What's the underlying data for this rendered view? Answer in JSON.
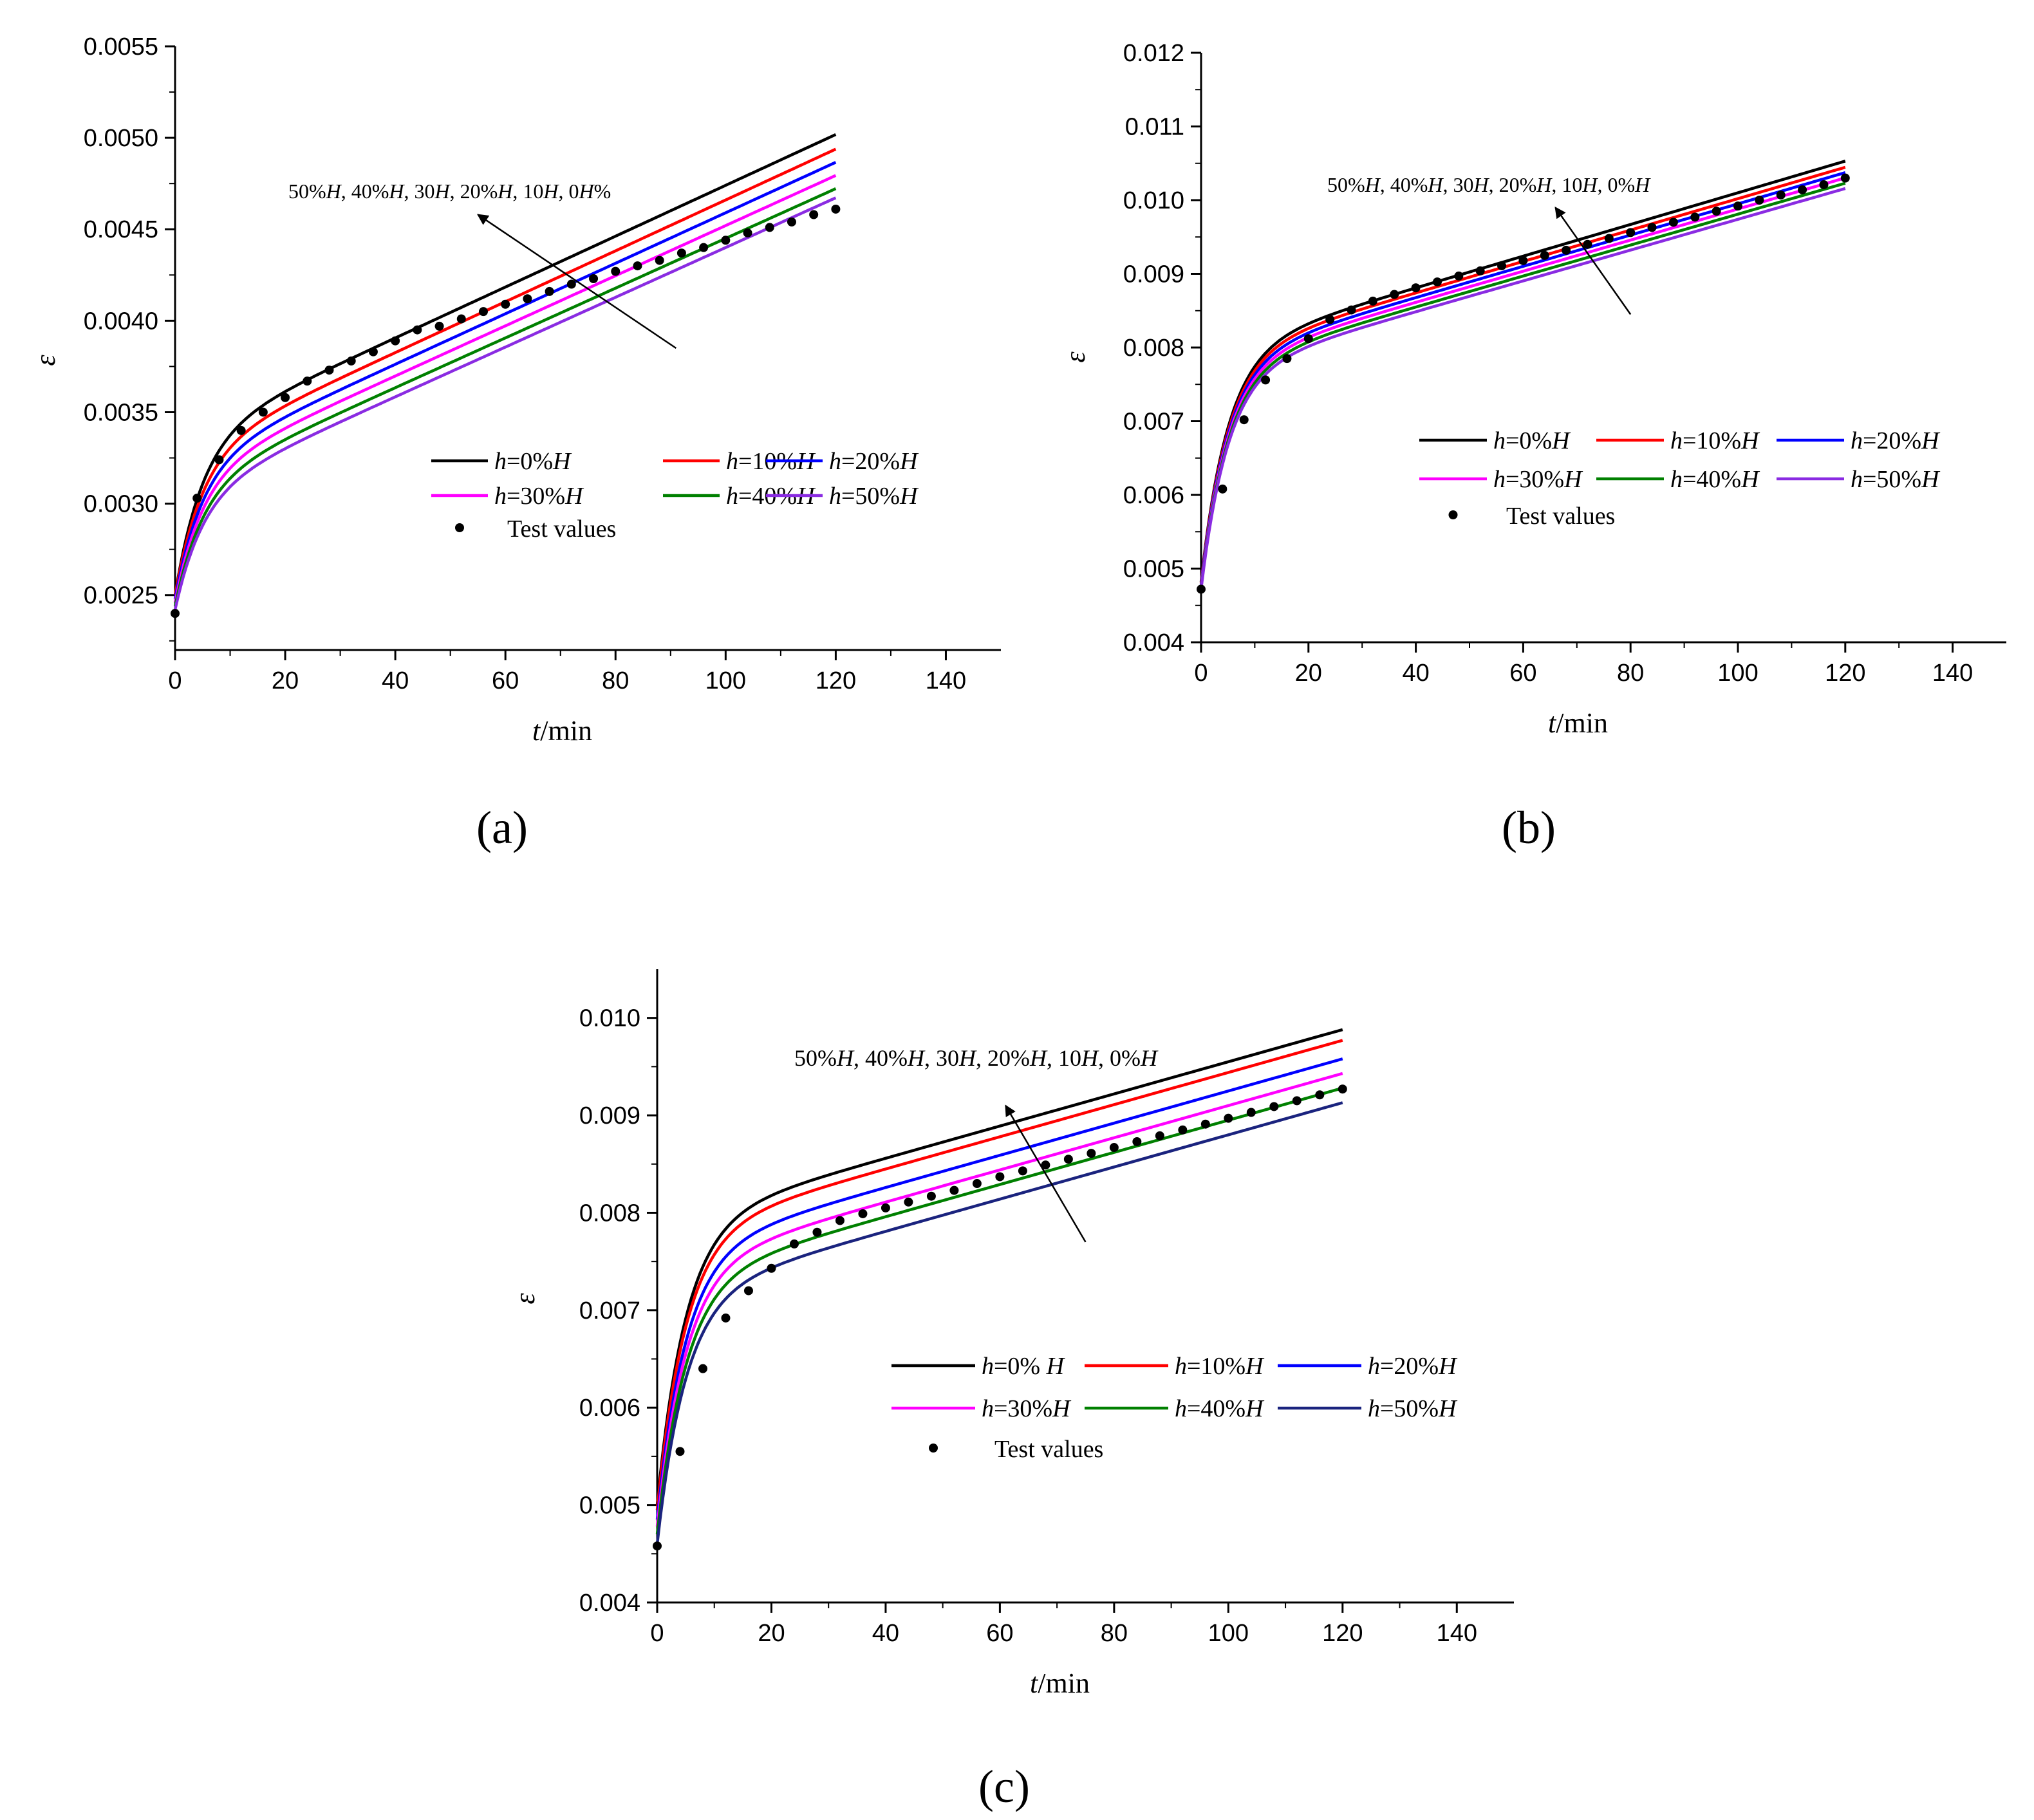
{
  "chart_data": [
    {
      "type": "line",
      "panel": "(a)",
      "xlabel": {
        "italic": "t",
        "unit": "/min"
      },
      "ylabel": "ε",
      "xlim": [
        0,
        150
      ],
      "ylim": [
        0.0022,
        0.0055
      ],
      "xticks": [
        0,
        20,
        40,
        60,
        80,
        100,
        120,
        140
      ],
      "yticks": [
        "0.0025",
        "0.0030",
        "0.0035",
        "0.0040",
        "0.0045",
        "0.0050",
        "0.0055"
      ],
      "annotation": [
        {
          "t": "50%",
          "i": false
        },
        {
          "t": "H",
          "i": true
        },
        {
          "t": ", 40%",
          "i": false
        },
        {
          "t": "H",
          "i": true
        },
        {
          "t": ", 30",
          "i": false
        },
        {
          "t": "H",
          "i": true
        },
        {
          "t": ", 20%",
          "i": false
        },
        {
          "t": "H",
          "i": true
        },
        {
          "t": ", 10",
          "i": false
        },
        {
          "t": "H",
          "i": true
        },
        {
          "t": ", 0",
          "i": false
        },
        {
          "t": "H",
          "i": true
        },
        {
          "t": "%",
          "i": false
        }
      ],
      "arrow": {
        "from": [
          91,
          0.00385
        ],
        "to": [
          55,
          0.00458
        ]
      },
      "legend": {
        "position": "lower-middle-right",
        "columns": 3
      },
      "series": [
        {
          "name": "h=0%H",
          "parts": [
            {
              "t": "h",
              "i": true
            },
            {
              "t": "=0%",
              "i": false
            },
            {
              "t": "H",
              "i": true
            }
          ],
          "color": "#000000",
          "start": 0.0025,
          "knee": 0.00335,
          "slope": 1.39e-05
        },
        {
          "name": "h=10%H",
          "parts": [
            {
              "t": "h",
              "i": true
            },
            {
              "t": "=10%",
              "i": false
            },
            {
              "t": "H",
              "i": true
            }
          ],
          "color": "#ff0000",
          "start": 0.0025,
          "knee": 0.00327,
          "slope": 1.39e-05
        },
        {
          "name": "h=20%H",
          "parts": [
            {
              "t": "h",
              "i": true
            },
            {
              "t": "=20%",
              "i": false
            },
            {
              "t": "H",
              "i": true
            }
          ],
          "color": "#0000ff",
          "start": 0.00248,
          "knee": 0.00321,
          "slope": 1.38e-05
        },
        {
          "name": "h=30%H",
          "parts": [
            {
              "t": "h",
              "i": true
            },
            {
              "t": "=30%",
              "i": false
            },
            {
              "t": "H",
              "i": true
            }
          ],
          "color": "#ff00ff",
          "start": 0.00246,
          "knee": 0.00315,
          "slope": 1.37e-05
        },
        {
          "name": "h=40%H",
          "parts": [
            {
              "t": "h",
              "i": true
            },
            {
              "t": "=40%",
              "i": false
            },
            {
              "t": "H",
              "i": true
            }
          ],
          "color": "#008000",
          "start": 0.00244,
          "knee": 0.00309,
          "slope": 1.36e-05
        },
        {
          "name": "h=50%H",
          "parts": [
            {
              "t": "h",
              "i": true
            },
            {
              "t": "=50%",
              "i": false
            },
            {
              "t": "H",
              "i": true
            }
          ],
          "color": "#8a2be2",
          "start": 0.00242,
          "knee": 0.00304,
          "slope": 1.36e-05
        }
      ],
      "test_label": "Test values",
      "test_points": {
        "x": [
          0,
          4,
          8,
          12,
          16,
          20,
          24,
          28,
          32,
          36,
          40,
          44,
          48,
          52,
          56,
          60,
          64,
          68,
          72,
          76,
          80,
          84,
          88,
          92,
          96,
          100,
          104,
          108,
          112,
          116,
          120
        ],
        "y": [
          0.0024,
          0.00303,
          0.00324,
          0.0034,
          0.0035,
          0.00358,
          0.00367,
          0.00373,
          0.00378,
          0.00383,
          0.00389,
          0.00395,
          0.00397,
          0.00401,
          0.00405,
          0.00409,
          0.00412,
          0.00416,
          0.0042,
          0.00423,
          0.00427,
          0.0043,
          0.00433,
          0.00437,
          0.0044,
          0.00444,
          0.00448,
          0.00451,
          0.00454,
          0.00458,
          0.00461
        ]
      }
    },
    {
      "type": "line",
      "panel": "(b)",
      "xlabel": {
        "italic": "t",
        "unit": "/min"
      },
      "ylabel": "ε",
      "xlim": [
        0,
        150
      ],
      "ylim": [
        0.004,
        0.012
      ],
      "xticks": [
        0,
        20,
        40,
        60,
        80,
        100,
        120,
        140
      ],
      "yticks": [
        "0.004",
        "0.005",
        "0.006",
        "0.007",
        "0.008",
        "0.009",
        "0.010",
        "0.011",
        "0.012"
      ],
      "annotation": [
        {
          "t": "50%",
          "i": false
        },
        {
          "t": "H",
          "i": true
        },
        {
          "t": ", 40%",
          "i": false
        },
        {
          "t": "H",
          "i": true
        },
        {
          "t": ", 30",
          "i": false
        },
        {
          "t": "H",
          "i": true
        },
        {
          "t": ", 20%",
          "i": false
        },
        {
          "t": "H",
          "i": true
        },
        {
          "t": ", 10",
          "i": false
        },
        {
          "t": "H",
          "i": true
        },
        {
          "t": ", 0%",
          "i": false
        },
        {
          "t": "H",
          "i": true
        }
      ],
      "arrow": {
        "from": [
          80,
          0.00845
        ],
        "to": [
          66,
          0.0099
        ]
      },
      "legend": {
        "position": "center-right",
        "columns": 3
      },
      "series": [
        {
          "name": "h=0%H",
          "parts": [
            {
              "t": "h",
              "i": true
            },
            {
              "t": "=0%",
              "i": false
            },
            {
              "t": "H",
              "i": true
            }
          ],
          "color": "#000000",
          "start": 0.00482,
          "knee": 0.00795,
          "slope": 2.15e-05
        },
        {
          "name": "h=10%H",
          "parts": [
            {
              "t": "h",
              "i": true
            },
            {
              "t": "=10%",
              "i": false
            },
            {
              "t": "H",
              "i": true
            }
          ],
          "color": "#ff0000",
          "start": 0.0048,
          "knee": 0.00789,
          "slope": 2.13e-05
        },
        {
          "name": "h=20%H",
          "parts": [
            {
              "t": "h",
              "i": true
            },
            {
              "t": "=20%",
              "i": false
            },
            {
              "t": "H",
              "i": true
            }
          ],
          "color": "#0000ff",
          "start": 0.00478,
          "knee": 0.00783,
          "slope": 2.12e-05
        },
        {
          "name": "h=30%H",
          "parts": [
            {
              "t": "h",
              "i": true
            },
            {
              "t": "=30%",
              "i": false
            },
            {
              "t": "H",
              "i": true
            }
          ],
          "color": "#ff00ff",
          "start": 0.00476,
          "knee": 0.00777,
          "slope": 2.11e-05
        },
        {
          "name": "h=40%H",
          "parts": [
            {
              "t": "h",
              "i": true
            },
            {
              "t": "=40%",
              "i": false
            },
            {
              "t": "H",
              "i": true
            }
          ],
          "color": "#008000",
          "start": 0.00474,
          "knee": 0.00771,
          "slope": 2.1e-05
        },
        {
          "name": "h=50%H",
          "parts": [
            {
              "t": "h",
              "i": true
            },
            {
              "t": "=50%",
              "i": false
            },
            {
              "t": "H",
              "i": true
            }
          ],
          "color": "#8a2be2",
          "start": 0.00472,
          "knee": 0.00765,
          "slope": 2.09e-05
        }
      ],
      "test_label": "Test values",
      "test_points": {
        "x": [
          0,
          4,
          8,
          12,
          16,
          20,
          24,
          28,
          32,
          36,
          40,
          44,
          48,
          52,
          56,
          60,
          64,
          68,
          72,
          76,
          80,
          84,
          88,
          92,
          96,
          100,
          104,
          108,
          112,
          116,
          120
        ],
        "y": [
          0.00472,
          0.00608,
          0.00702,
          0.00756,
          0.00785,
          0.00812,
          0.00838,
          0.00851,
          0.00863,
          0.00872,
          0.00881,
          0.00889,
          0.00897,
          0.00904,
          0.00911,
          0.00918,
          0.00925,
          0.00932,
          0.0094,
          0.00948,
          0.00956,
          0.00963,
          0.0097,
          0.00977,
          0.00985,
          0.00992,
          0.01,
          0.01007,
          0.01014,
          0.01021,
          0.0103
        ]
      }
    },
    {
      "type": "line",
      "panel": "(c)",
      "xlabel": {
        "italic": "t",
        "unit": "/min"
      },
      "ylabel": "ε",
      "xlim": [
        0,
        150
      ],
      "ylim": [
        0.004,
        0.0105
      ],
      "xticks": [
        0,
        20,
        40,
        60,
        80,
        100,
        120,
        140
      ],
      "yticks": [
        "0.004",
        "0.005",
        "0.006",
        "0.007",
        "0.008",
        "0.009",
        "0.010"
      ],
      "annotation": [
        {
          "t": "50%",
          "i": false
        },
        {
          "t": "H",
          "i": true
        },
        {
          "t": ", 40%",
          "i": false
        },
        {
          "t": "H",
          "i": true
        },
        {
          "t": ", 30",
          "i": false
        },
        {
          "t": "H",
          "i": true
        },
        {
          "t": ", 20%",
          "i": false
        },
        {
          "t": "H",
          "i": true
        },
        {
          "t": ", 10",
          "i": false
        },
        {
          "t": "H",
          "i": true
        },
        {
          "t": ", 0%",
          "i": false
        },
        {
          "t": "H",
          "i": true
        }
      ],
      "arrow": {
        "from": [
          75,
          0.0077
        ],
        "to": [
          61,
          0.0091
        ]
      },
      "legend": {
        "position": "lower-right",
        "columns": 3
      },
      "series": [
        {
          "name": "h=0% H",
          "parts": [
            {
              "t": "h",
              "i": true
            },
            {
              "t": "=0% ",
              "i": false
            },
            {
              "t": "H",
              "i": true
            }
          ],
          "color": "#000000",
          "start": 0.005,
          "knee": 0.0079,
          "slope": 1.65e-05
        },
        {
          "name": "h=10%H",
          "parts": [
            {
              "t": "h",
              "i": true
            },
            {
              "t": "=10%",
              "i": false
            },
            {
              "t": "H",
              "i": true
            }
          ],
          "color": "#ff0000",
          "start": 0.00495,
          "knee": 0.00779,
          "slope": 1.65e-05
        },
        {
          "name": "h=20%H",
          "parts": [
            {
              "t": "h",
              "i": true
            },
            {
              "t": "=20%",
              "i": false
            },
            {
              "t": "H",
              "i": true
            }
          ],
          "color": "#0000ff",
          "start": 0.00485,
          "knee": 0.0076,
          "slope": 1.65e-05
        },
        {
          "name": "h=30%H",
          "parts": [
            {
              "t": "h",
              "i": true
            },
            {
              "t": "=30%",
              "i": false
            },
            {
              "t": "H",
              "i": true
            }
          ],
          "color": "#ff00ff",
          "start": 0.00478,
          "knee": 0.00745,
          "slope": 1.65e-05
        },
        {
          "name": "h=40%H",
          "parts": [
            {
              "t": "h",
              "i": true
            },
            {
              "t": "=40%",
              "i": false
            },
            {
              "t": "H",
              "i": true
            }
          ],
          "color": "#008000",
          "start": 0.0047,
          "knee": 0.0073,
          "slope": 1.65e-05
        },
        {
          "name": "h=50%H",
          "parts": [
            {
              "t": "h",
              "i": true
            },
            {
              "t": "=50%",
              "i": false
            },
            {
              "t": "H",
              "i": true
            }
          ],
          "color": "#1a237e",
          "start": 0.0046,
          "knee": 0.00715,
          "slope": 1.65e-05
        }
      ],
      "test_label": "Test values",
      "test_points": {
        "x": [
          0,
          4,
          8,
          12,
          16,
          20,
          24,
          28,
          32,
          36,
          40,
          44,
          48,
          52,
          56,
          60,
          64,
          68,
          72,
          76,
          80,
          84,
          88,
          92,
          96,
          100,
          104,
          108,
          112,
          116,
          120
        ],
        "y": [
          0.00458,
          0.00555,
          0.0064,
          0.00692,
          0.0072,
          0.00743,
          0.00768,
          0.0078,
          0.00792,
          0.00799,
          0.00805,
          0.00811,
          0.00817,
          0.00823,
          0.0083,
          0.00837,
          0.00843,
          0.00849,
          0.00855,
          0.00861,
          0.00867,
          0.00873,
          0.00879,
          0.00885,
          0.00891,
          0.00897,
          0.00903,
          0.00909,
          0.00915,
          0.00921,
          0.00927
        ]
      }
    }
  ]
}
